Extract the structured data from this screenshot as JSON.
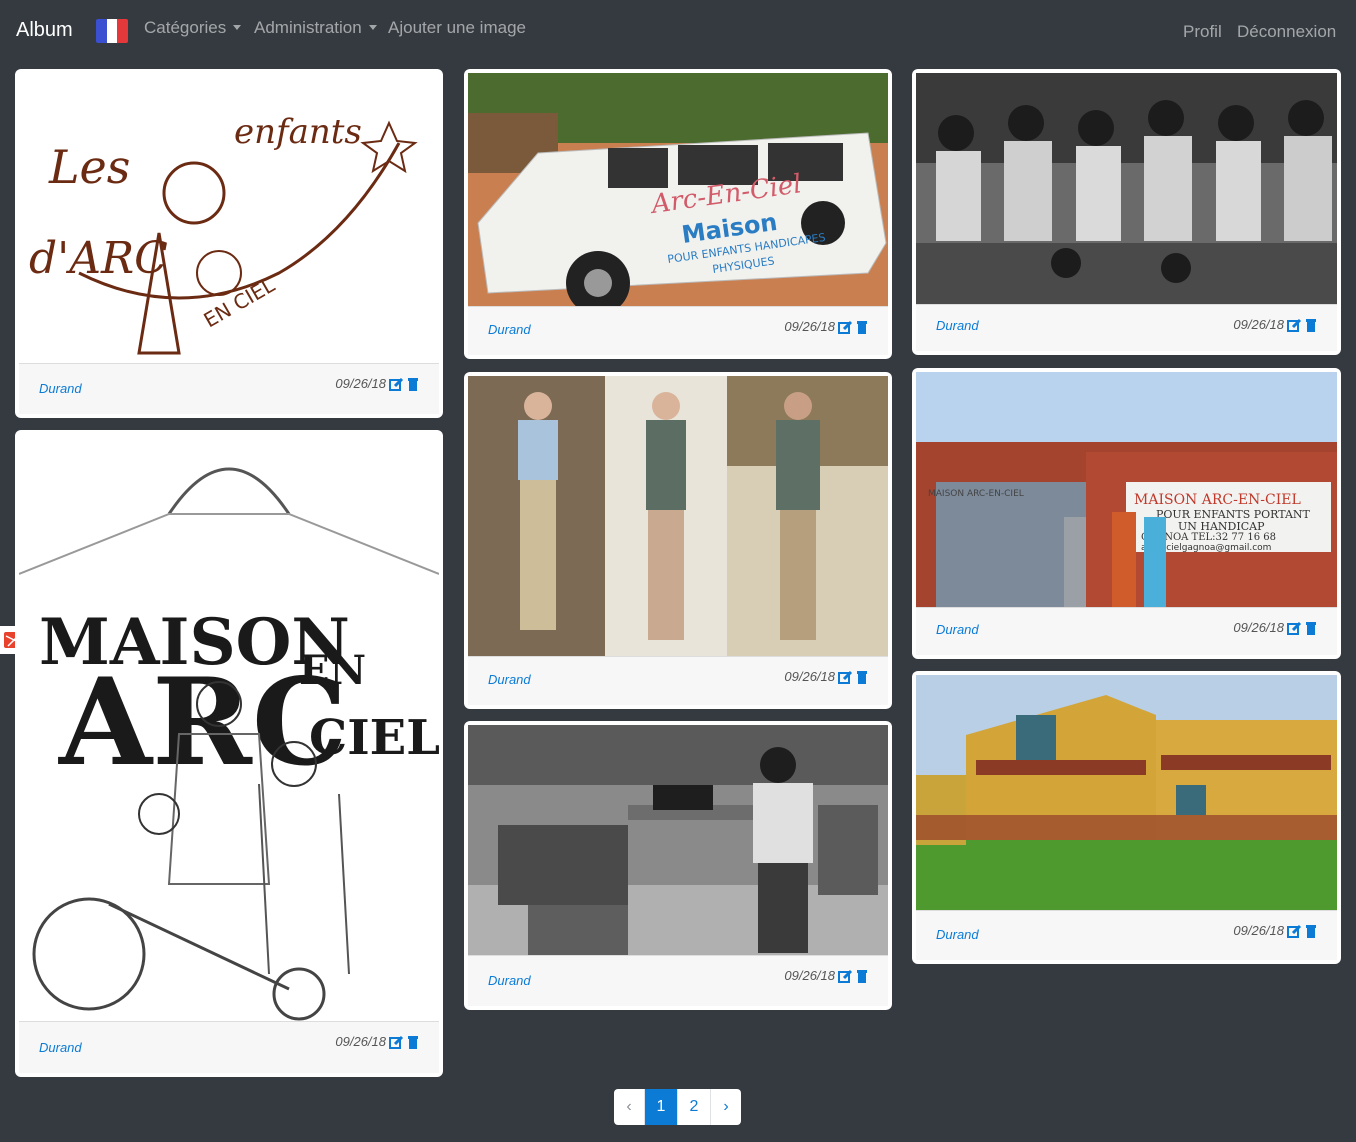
{
  "navbar": {
    "brand": "Album",
    "categories_label": "Catégories",
    "admin_label": "Administration",
    "add_image_label": "Ajouter une image",
    "profile_label": "Profil",
    "logout_label": "Déconnexion",
    "flag_icon": "france-flag-icon"
  },
  "cards": [
    {
      "author": "Durand",
      "date": "09/26/18",
      "image": "logo-les-enfants-arc-en-ciel"
    },
    {
      "author": "Durand",
      "date": "09/26/18",
      "image": "minibus-maison-arc-en-ciel"
    },
    {
      "author": "Durand",
      "date": "09/26/18",
      "image": "children-group-bw"
    },
    {
      "author": "Durand",
      "date": "09/26/18",
      "image": "three-portraits-man"
    },
    {
      "author": "Durand",
      "date": "09/26/18",
      "image": "gate-maison-arc-en-ciel"
    },
    {
      "author": "Durand",
      "date": "09/26/18",
      "image": "maison-arc-en-ciel-drawing"
    },
    {
      "author": "Durand",
      "date": "09/26/18",
      "image": "sewing-workshop-bw"
    },
    {
      "author": "Durand",
      "date": "09/26/18",
      "image": "building-exterior"
    }
  ],
  "logo_text": {
    "card0_line1": "Les",
    "card0_line2": "enfants",
    "card0_line3": "d'ARC",
    "card0_line4": "EN CIEL",
    "card5_line1": "MAISON",
    "card5_line2": "ARC",
    "card5_line3": "EN",
    "card5_line4": "CIEL"
  },
  "photo_text": {
    "van_line1": "Arc-En-Ciel",
    "van_line2": "Maison",
    "van_line3": "POUR ENFANTS HANDICAPES",
    "van_line4": "PHYSIQUES",
    "gate_line1": "MAISON ARC-EN-CIEL",
    "gate_line2": "POUR ENFANTS PORTANT",
    "gate_line3": "UN HANDICAP",
    "gate_line4": "GAGNOA TEL:32 77 16 68",
    "gate_line5": "arcencielgagnoa@gmail.com",
    "gate_wall": "MAISON ARC-EN-CIEL"
  },
  "pagination": {
    "prev": "‹",
    "pages": [
      "1",
      "2"
    ],
    "next": "›",
    "active": "1"
  },
  "colors": {
    "background": "#343a40",
    "link": "#0b7bd6"
  }
}
